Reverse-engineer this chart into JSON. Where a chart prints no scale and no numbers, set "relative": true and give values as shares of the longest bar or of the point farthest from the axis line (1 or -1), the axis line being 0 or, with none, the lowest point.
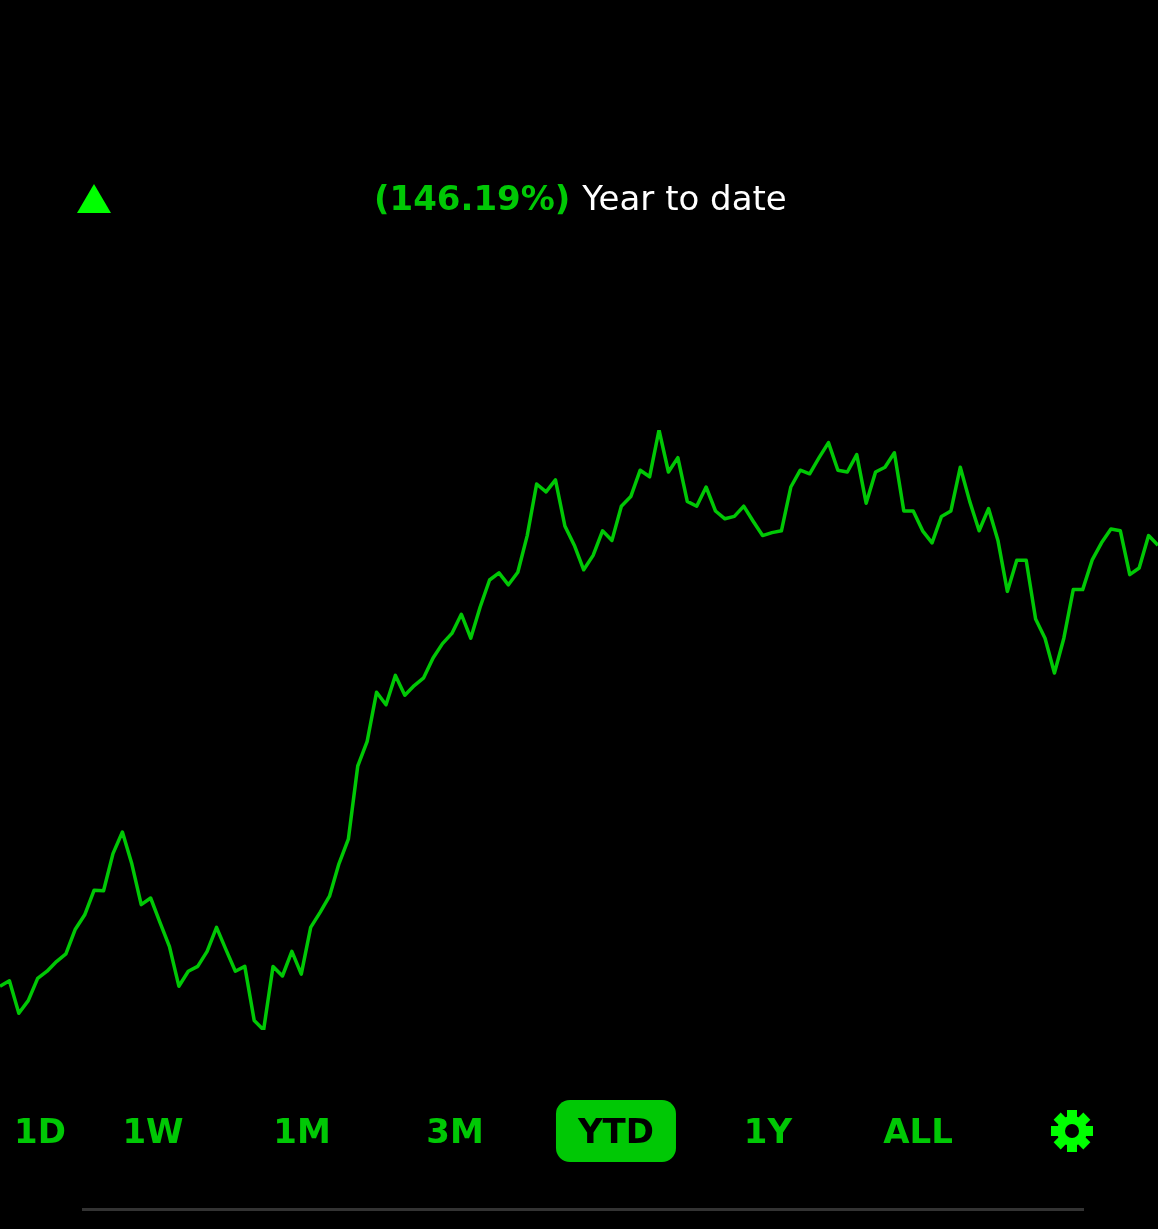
{
  "chart_data": {
    "type": "line",
    "relative": true,
    "annotations": [
      "(146.19%)",
      "Year to date",
      "1D",
      "1W",
      "1M",
      "3M",
      "YTD",
      "1Y",
      "ALL"
    ],
    "series": [
      {
        "color": "#00c805",
        "values": [
          0.073,
          0.082,
          0.028,
          0.049,
          0.086,
          0.098,
          0.114,
          0.127,
          0.168,
          0.192,
          0.233,
          0.232,
          0.294,
          0.33,
          0.277,
          0.209,
          0.22,
          0.179,
          0.139,
          0.073,
          0.098,
          0.106,
          0.131,
          0.171,
          0.134,
          0.098,
          0.106,
          0.016,
          0,
          0.106,
          0.09,
          0.131,
          0.093,
          0.171,
          0.196,
          0.223,
          0.277,
          0.318,
          0.44,
          0.481,
          0.563,
          0.542,
          0.591,
          0.558,
          0.574,
          0.587,
          0.62,
          0.644,
          0.661,
          0.693,
          0.653,
          0.705,
          0.75,
          0.762,
          0.742,
          0.763,
          0.824,
          0.91,
          0.897,
          0.917,
          0.84,
          0.808,
          0.767,
          0.791,
          0.832,
          0.816,
          0.873,
          0.889,
          0.933,
          0.922,
          1,
          0.93,
          0.954,
          0.881,
          0.873,
          0.905,
          0.865,
          0.852,
          0.856,
          0.873,
          0.848,
          0.824,
          0.829,
          0.832,
          0.905,
          0.933,
          0.927,
          0.954,
          0.979,
          0.933,
          0.93,
          0.959,
          0.878,
          0.93,
          0.938,
          0.962,
          0.865,
          0.865,
          0.832,
          0.812,
          0.856,
          0.865,
          0.938,
          0.881,
          0.832,
          0.869,
          0.816,
          0.731,
          0.783,
          0.783,
          0.685,
          0.653,
          0.595,
          0.653,
          0.734,
          0.734,
          0.783,
          0.812,
          0.835,
          0.832,
          0.759,
          0.77,
          0.824,
          0.808
        ]
      }
    ],
    "categories": [
      null,
      null,
      null,
      null,
      null,
      null,
      null,
      null,
      null,
      null,
      null,
      null,
      null,
      null,
      null,
      null,
      null,
      null,
      null,
      null,
      null,
      null,
      null,
      null,
      null,
      null,
      null,
      null,
      null,
      null,
      null,
      null,
      null,
      null,
      null,
      null,
      null,
      null,
      null,
      null,
      null,
      null,
      null,
      null,
      null,
      null,
      null,
      null,
      null,
      null,
      null,
      null,
      null,
      null,
      null,
      null,
      null,
      null,
      null,
      null,
      null,
      null,
      null,
      null,
      null,
      null,
      null,
      null,
      null,
      null,
      null,
      null,
      null,
      null,
      null,
      null,
      null,
      null,
      null,
      null,
      null,
      null,
      null,
      null,
      null,
      null,
      null,
      null,
      null,
      null,
      null,
      null,
      null,
      null,
      null,
      null,
      null,
      null,
      null,
      null,
      null,
      null,
      null,
      null,
      null,
      null,
      null,
      null,
      null,
      null,
      null,
      null,
      null,
      null,
      null,
      null,
      null,
      null,
      null,
      null,
      null,
      null,
      null,
      null
    ]
  }
}
